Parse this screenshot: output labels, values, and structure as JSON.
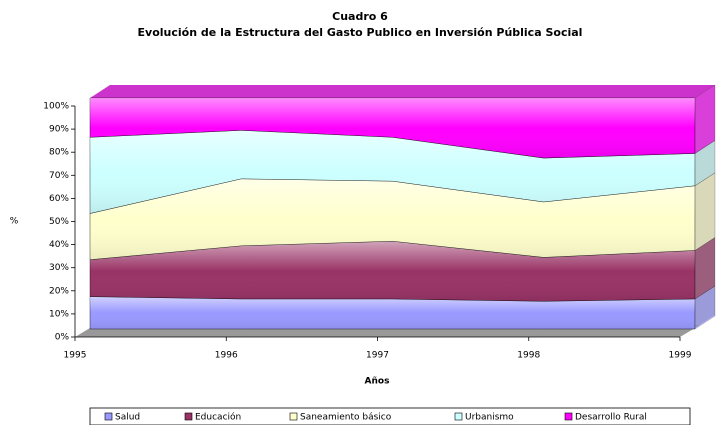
{
  "chart_data": {
    "type": "stacked_area",
    "title": "Cuadro 6",
    "subtitle": "Evolución de la Estructura del Gasto Publico en Inversión Pública Social",
    "x_label": "Años",
    "y_label": "%",
    "x": [
      1995,
      1996,
      1997,
      1998,
      1999
    ],
    "xlim": [
      1995,
      1999
    ],
    "xticks": [
      1995,
      1996,
      1997,
      1998,
      1999
    ],
    "ylim": [
      0,
      100
    ],
    "yticks": [
      {
        "value": 0,
        "label": "0%"
      },
      {
        "value": 10,
        "label": "10%"
      },
      {
        "value": 20,
        "label": "20%"
      },
      {
        "value": 30,
        "label": "30%"
      },
      {
        "value": 40,
        "label": "40%"
      },
      {
        "value": 50,
        "label": "50%"
      },
      {
        "value": 60,
        "label": "60%"
      },
      {
        "value": 70,
        "label": "70%"
      },
      {
        "value": 80,
        "label": "80%"
      },
      {
        "value": 90,
        "label": "90%"
      },
      {
        "value": 100,
        "label": "100%"
      }
    ],
    "legend": "bottom",
    "series": [
      {
        "name": "Salud",
        "color": "#9999ff",
        "values": [
          14,
          13,
          13,
          12,
          13
        ]
      },
      {
        "name": "Educación",
        "color": "#993366",
        "values": [
          16,
          23,
          25,
          19,
          21
        ]
      },
      {
        "name": "Saneamiento básico",
        "color": "#ffffcc",
        "values": [
          20,
          29,
          26,
          24,
          28
        ]
      },
      {
        "name": "Urbanismo",
        "color": "#ccffff",
        "values": [
          33,
          21,
          19,
          19,
          14
        ]
      },
      {
        "name": "Desarrollo Rural",
        "color": "#ff00ff",
        "values": [
          17,
          14,
          17,
          26,
          24
        ]
      }
    ]
  }
}
